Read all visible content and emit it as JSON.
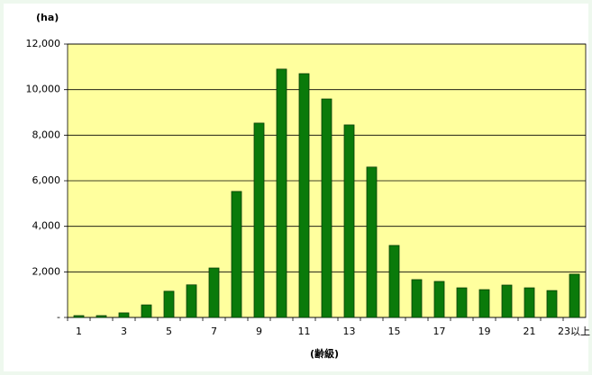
{
  "chart_data": {
    "type": "bar",
    "y_label": "(ha)",
    "x_label": "(齢級)",
    "categories": [
      "1",
      null,
      "3",
      null,
      "5",
      null,
      "7",
      null,
      "9",
      null,
      "11",
      null,
      "13",
      null,
      "15",
      null,
      "17",
      null,
      "19",
      null,
      "21",
      null,
      "23以上"
    ],
    "values": [
      80,
      80,
      200,
      550,
      1150,
      1430,
      2170,
      5530,
      8530,
      10900,
      10700,
      9590,
      8450,
      6600,
      3160,
      1660,
      1580,
      1300,
      1220,
      1420,
      1300,
      1180,
      1900
    ],
    "color": "#0a7a0a",
    "ylim": [
      0,
      12000
    ],
    "yticks": [
      {
        "value": 0,
        "label": "-"
      },
      {
        "value": 2000,
        "label": "2,000"
      },
      {
        "value": 4000,
        "label": "4,000"
      },
      {
        "value": 6000,
        "label": "6,000"
      },
      {
        "value": 8000,
        "label": "8,000"
      },
      {
        "value": 10000,
        "label": "10,000"
      },
      {
        "value": 12000,
        "label": "12,000"
      }
    ],
    "grid": true
  }
}
